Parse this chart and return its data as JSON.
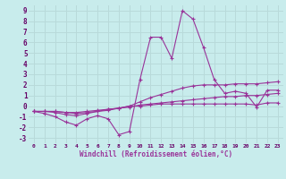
{
  "xlabel": "Windchill (Refroidissement éolien,°C)",
  "bg_color": "#c8ecec",
  "grid_color": "#b8dada",
  "line_color": "#993399",
  "xlim": [
    -0.5,
    23.5
  ],
  "ylim": [
    -3.5,
    9.5
  ],
  "yticks": [
    -3,
    -2,
    -1,
    0,
    1,
    2,
    3,
    4,
    5,
    6,
    7,
    8,
    9
  ],
  "xticks": [
    0,
    1,
    2,
    3,
    4,
    5,
    6,
    7,
    8,
    9,
    10,
    11,
    12,
    13,
    14,
    15,
    16,
    17,
    18,
    19,
    20,
    21,
    22,
    23
  ],
  "line1_y": [
    -0.5,
    -0.7,
    -1.0,
    -1.5,
    -1.8,
    -1.2,
    -0.9,
    -1.2,
    -2.7,
    -2.4,
    2.5,
    6.5,
    6.5,
    4.5,
    9.0,
    8.2,
    5.5,
    2.5,
    1.2,
    1.4,
    1.2,
    -0.1,
    1.5,
    1.5
  ],
  "line2_y": [
    -0.5,
    -0.5,
    -0.6,
    -0.8,
    -0.9,
    -0.7,
    -0.5,
    -0.3,
    -0.2,
    0.0,
    0.4,
    0.8,
    1.1,
    1.4,
    1.7,
    1.9,
    2.0,
    2.0,
    2.0,
    2.1,
    2.1,
    2.1,
    2.2,
    2.3
  ],
  "line3_y": [
    -0.5,
    -0.5,
    -0.5,
    -0.6,
    -0.6,
    -0.5,
    -0.4,
    -0.3,
    -0.2,
    -0.1,
    0.1,
    0.2,
    0.3,
    0.4,
    0.5,
    0.6,
    0.7,
    0.8,
    0.9,
    0.9,
    1.0,
    1.0,
    1.1,
    1.2
  ],
  "line4_y": [
    -0.5,
    -0.5,
    -0.5,
    -0.6,
    -0.7,
    -0.6,
    -0.5,
    -0.4,
    -0.2,
    0.0,
    0.0,
    0.1,
    0.2,
    0.2,
    0.2,
    0.2,
    0.2,
    0.2,
    0.2,
    0.2,
    0.2,
    0.1,
    0.3,
    0.3
  ]
}
